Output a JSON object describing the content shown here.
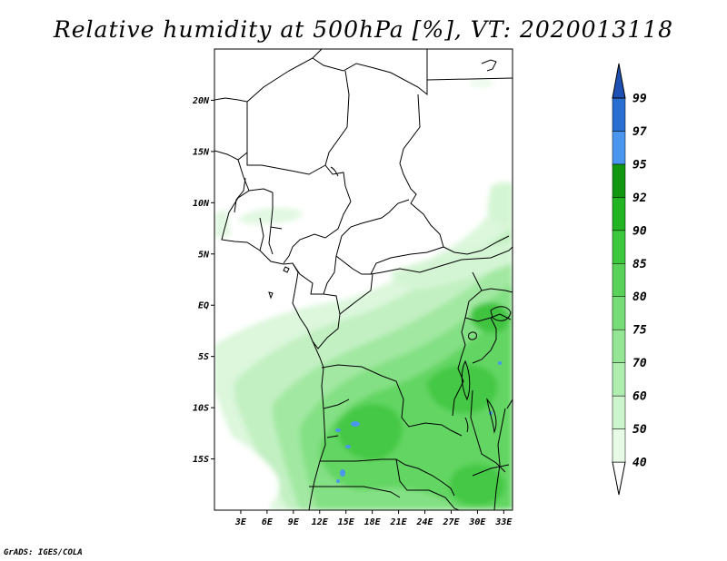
{
  "title": "Relative humidity at 500hPa [%], VT: 2020013118",
  "credit": "GrADS: IGES/COLA",
  "map": {
    "lon_range": [
      0,
      34
    ],
    "lat_range": [
      -20,
      25
    ],
    "lon_ticks": [
      {
        "value": 3,
        "label": "3E"
      },
      {
        "value": 6,
        "label": "6E"
      },
      {
        "value": 9,
        "label": "9E"
      },
      {
        "value": 12,
        "label": "12E"
      },
      {
        "value": 15,
        "label": "15E"
      },
      {
        "value": 18,
        "label": "18E"
      },
      {
        "value": 21,
        "label": "21E"
      },
      {
        "value": 24,
        "label": "24E"
      },
      {
        "value": 27,
        "label": "27E"
      },
      {
        "value": 30,
        "label": "30E"
      },
      {
        "value": 33,
        "label": "33E"
      }
    ],
    "lat_ticks": [
      {
        "value": 20,
        "label": "20N"
      },
      {
        "value": 15,
        "label": "15N"
      },
      {
        "value": 10,
        "label": "10N"
      },
      {
        "value": 5,
        "label": "5N"
      },
      {
        "value": 0,
        "label": "EQ"
      },
      {
        "value": -5,
        "label": "5S"
      },
      {
        "value": -10,
        "label": "10S"
      },
      {
        "value": -15,
        "label": "15S"
      }
    ]
  },
  "colorbar": {
    "levels": [
      "40",
      "50",
      "60",
      "70",
      "75",
      "80",
      "85",
      "90",
      "92",
      "95",
      "97",
      "99"
    ],
    "colors": [
      "#ffffff",
      "#e6fae6",
      "#cdf5cd",
      "#b0eeb0",
      "#94e694",
      "#78dc78",
      "#5ad25a",
      "#3cc83c",
      "#22b422",
      "#129612",
      "#4a96ee",
      "#2a6ed2",
      "#1e50b4"
    ]
  }
}
